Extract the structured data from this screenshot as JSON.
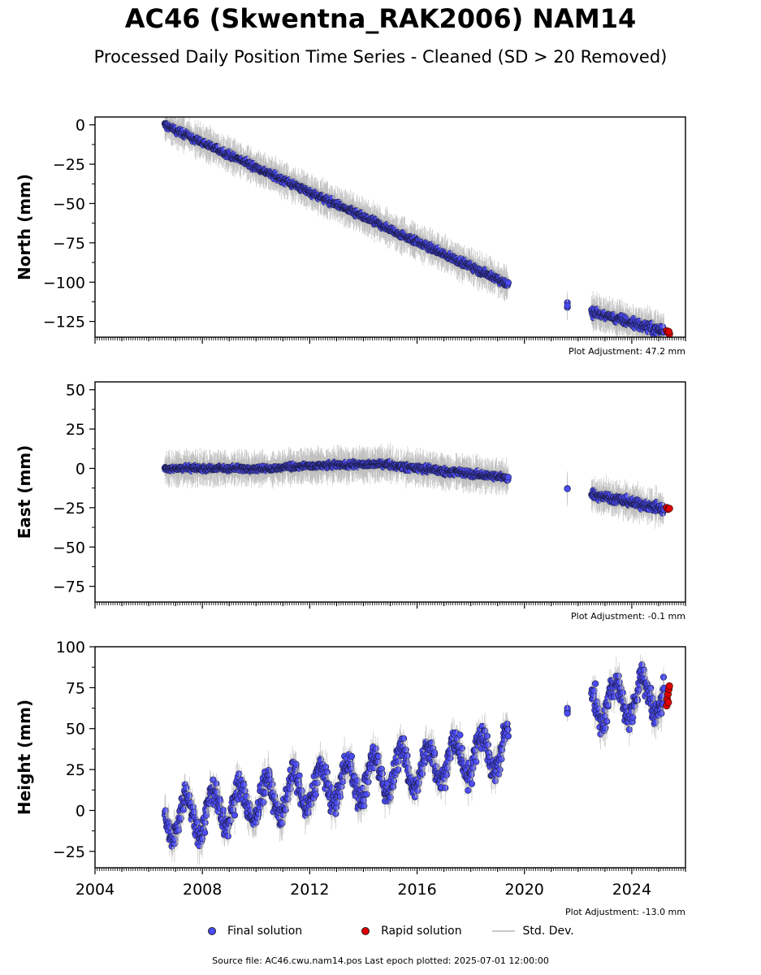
{
  "title": "AC46 (Skwentna_RAK2006) NAM14",
  "subtitle": "Processed Daily Position Time Series - Cleaned (SD > 20 Removed)",
  "colors": {
    "final": "#4b4bf5",
    "rapid": "#e00000",
    "stddev": "#b4b4b4"
  },
  "legend": {
    "final": "Final solution",
    "rapid": "Rapid solution",
    "stddev": "Std. Dev."
  },
  "source": "Source file: AC46.cwu.nam14.pos  Last epoch plotted: 2025-07-01 12:00:00",
  "x_ticks": [
    "2004",
    "2008",
    "2012",
    "2016",
    "2020",
    "2024"
  ],
  "chart_data": [
    {
      "type": "scatter",
      "ylabel": "North (mm)",
      "xlim": [
        2004,
        2026
      ],
      "ylim": [
        -135,
        5
      ],
      "yticks": [
        "0",
        "−25",
        "−50",
        "−75",
        "−100",
        "−125"
      ],
      "ytick_values": [
        0,
        -25,
        -50,
        -75,
        -100,
        -125
      ],
      "adjustment": "Plot Adjustment: 47.2 mm",
      "series": [
        {
          "name": "Final solution",
          "segments": [
            {
              "x0": 2006.6,
              "x1": 2019.4,
              "y0": 0,
              "y1": -101,
              "noise": 1.5
            },
            {
              "x0": 2021.6,
              "x1": 2021.6,
              "y0": -115,
              "y1": -116,
              "noise": 2.0
            },
            {
              "x0": 2022.5,
              "x1": 2025.2,
              "y0": -119,
              "y1": -131,
              "noise": 2.0
            }
          ]
        },
        {
          "name": "Rapid solution",
          "points": [
            [
              2025.3,
              -131
            ],
            [
              2025.35,
              -132
            ],
            [
              2025.4,
              -133
            ],
            [
              2025.38,
              -131.5
            ]
          ]
        }
      ]
    },
    {
      "type": "scatter",
      "ylabel": "East (mm)",
      "xlim": [
        2004,
        2026
      ],
      "ylim": [
        -85,
        55
      ],
      "yticks": [
        "50",
        "25",
        "0",
        "−25",
        "−50",
        "−75"
      ],
      "ytick_values": [
        50,
        25,
        0,
        -25,
        -50,
        -75
      ],
      "adjustment": "Plot Adjustment: -0.1 mm",
      "series": [
        {
          "name": "Final solution",
          "segments": [
            {
              "x0": 2006.6,
              "x1": 2011.0,
              "y0": 0,
              "y1": 0,
              "noise": 1.2
            },
            {
              "x0": 2011.0,
              "x1": 2015.0,
              "y0": 1,
              "y1": 3,
              "noise": 1.2
            },
            {
              "x0": 2015.0,
              "x1": 2019.4,
              "y0": 2,
              "y1": -6,
              "noise": 1.5
            },
            {
              "x0": 2021.6,
              "x1": 2021.6,
              "y0": -13,
              "y1": -13,
              "noise": 0.5
            },
            {
              "x0": 2022.5,
              "x1": 2025.2,
              "y0": -16,
              "y1": -26,
              "noise": 2.0
            }
          ]
        },
        {
          "name": "Rapid solution",
          "points": [
            [
              2025.3,
              -25
            ],
            [
              2025.35,
              -26
            ],
            [
              2025.4,
              -25.5
            ]
          ]
        }
      ]
    },
    {
      "type": "scatter",
      "ylabel": "Height (mm)",
      "xlim": [
        2004,
        2026
      ],
      "ylim": [
        -35,
        100
      ],
      "yticks": [
        "100",
        "75",
        "50",
        "25",
        "0",
        "−25"
      ],
      "ytick_values": [
        100,
        75,
        50,
        25,
        0,
        -25
      ],
      "adjustment": "Plot Adjustment: -13.0 mm",
      "series": [
        {
          "name": "Final solution",
          "segments": [
            {
              "x0": 2006.6,
              "x1": 2019.4,
              "y0": -6,
              "y1": 38,
              "noise": 6,
              "seasonal": 12
            },
            {
              "x0": 2021.6,
              "x1": 2021.6,
              "y0": 60,
              "y1": 60,
              "noise": 2
            },
            {
              "x0": 2022.5,
              "x1": 2025.2,
              "y0": 65,
              "y1": 72,
              "noise": 6,
              "seasonal": 12
            }
          ]
        },
        {
          "name": "Rapid solution",
          "points": [
            [
              2025.3,
              64
            ],
            [
              2025.32,
              68
            ],
            [
              2025.35,
              71
            ],
            [
              2025.38,
              74
            ],
            [
              2025.4,
              76
            ],
            [
              2025.36,
              66
            ]
          ]
        }
      ]
    }
  ]
}
